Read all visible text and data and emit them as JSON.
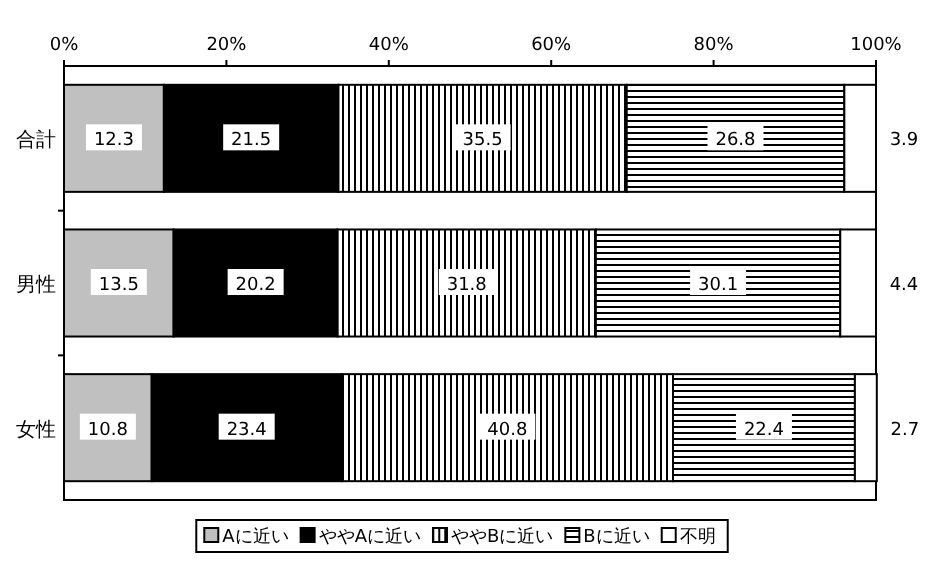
{
  "chart_data": {
    "type": "bar",
    "orientation": "horizontal",
    "stacked": true,
    "categories": [
      "合計",
      "男性",
      "女性"
    ],
    "series": [
      {
        "name": "Aに近い",
        "color": "#c0c0c0",
        "values": [
          12.3,
          13.5,
          10.8
        ]
      },
      {
        "name": "ややAに近い",
        "color": "#000000",
        "values": [
          21.5,
          20.2,
          23.4
        ]
      },
      {
        "name": "ややBに近い",
        "color": "#000000",
        "values": [
          35.5,
          31.8,
          40.8
        ]
      },
      {
        "name": "Bに近い",
        "color": "#000000",
        "values": [
          26.8,
          30.1,
          22.4
        ]
      },
      {
        "name": "不明",
        "color": "#ffffff",
        "values": [
          3.9,
          4.4,
          2.7
        ]
      }
    ],
    "xlim": [
      0,
      100
    ],
    "xticks": [
      {
        "value": 0,
        "label": "0%"
      },
      {
        "value": 20,
        "label": "20%"
      },
      {
        "value": 40,
        "label": "40%"
      },
      {
        "value": 60,
        "label": "60%"
      },
      {
        "value": 80,
        "label": "80%"
      },
      {
        "value": 100,
        "label": "100%"
      }
    ],
    "data_labels": true,
    "legend": "bottom",
    "grid": false
  }
}
